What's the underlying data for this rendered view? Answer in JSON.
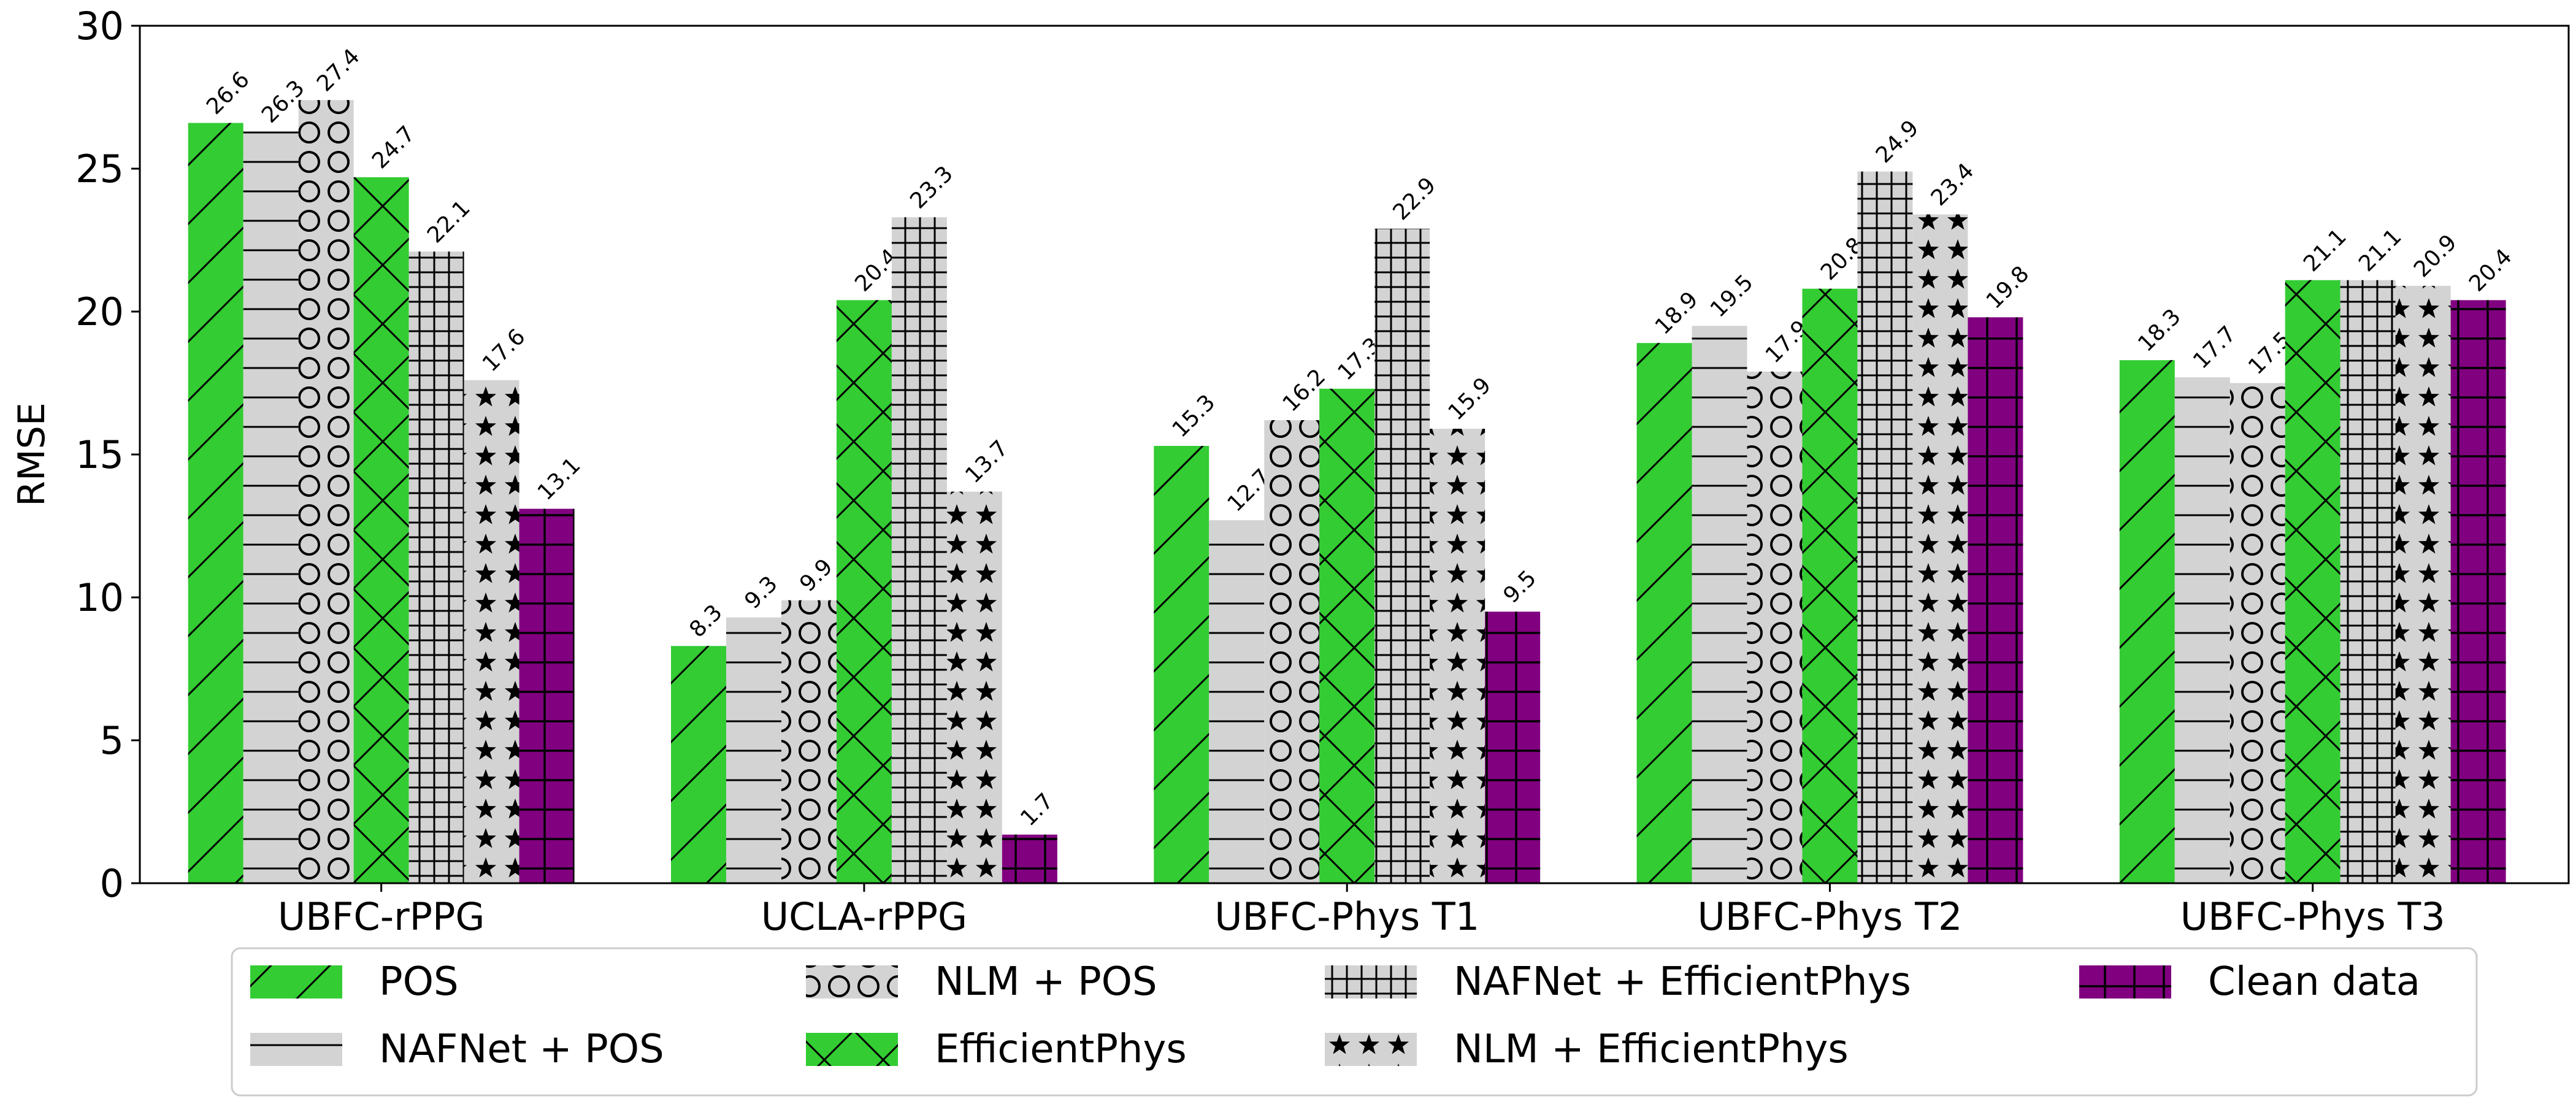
{
  "chart_data": {
    "type": "bar",
    "title": "",
    "xlabel": "",
    "ylabel": "RMSE",
    "ylim": [
      0,
      30
    ],
    "yticks": [
      0,
      5,
      10,
      15,
      20,
      25,
      30
    ],
    "grid": false,
    "legend_position": "bottom",
    "categories": [
      "UBFC-rPPG",
      "UCLA-rPPG",
      "UBFC-Phys T1",
      "UBFC-Phys T2",
      "UBFC-Phys T3"
    ],
    "series": [
      {
        "name": "POS",
        "color": "#33cc33",
        "hatch": "diagonal",
        "values": [
          26.6,
          8.3,
          15.3,
          18.9,
          18.3
        ],
        "labels": [
          "26.6",
          "8.3",
          "15.3",
          "18.9",
          "18.3"
        ]
      },
      {
        "name": "NAFNet + POS",
        "color": "#d3d3d3",
        "hatch": "horizontal",
        "values": [
          26.3,
          9.3,
          12.7,
          19.5,
          17.7
        ],
        "labels": [
          "26.3",
          "9.3",
          "12.7",
          "19.5",
          "17.7"
        ]
      },
      {
        "name": "NLM + POS",
        "color": "#d3d3d3",
        "hatch": "circles",
        "values": [
          27.4,
          9.9,
          16.2,
          17.9,
          17.5
        ],
        "labels": [
          "27.4",
          "9.9",
          "16.2",
          "17.9",
          "17.5"
        ]
      },
      {
        "name": "EfficientPhys",
        "color": "#33cc33",
        "hatch": "crossdiag",
        "values": [
          24.7,
          20.4,
          17.3,
          20.8,
          21.1
        ],
        "labels": [
          "24.7",
          "20.4",
          "17.3",
          "20.8",
          "21.1"
        ]
      },
      {
        "name": "NAFNet + EfficientPhys",
        "color": "#d3d3d3",
        "hatch": "grid",
        "values": [
          22.1,
          23.3,
          22.9,
          24.9,
          21.1
        ],
        "labels": [
          "22.1",
          "23.3",
          "22.9",
          "24.9",
          "21.1"
        ]
      },
      {
        "name": "NLM + EfficientPhys",
        "color": "#d3d3d3",
        "hatch": "stars",
        "values": [
          17.6,
          13.7,
          15.9,
          23.4,
          20.9
        ],
        "labels": [
          "17.6",
          "13.7",
          "15.9",
          "23.4",
          "20.9"
        ]
      },
      {
        "name": "Clean data",
        "color": "#800080",
        "hatch": "bigplus",
        "values": [
          13.1,
          1.7,
          9.5,
          19.8,
          20.4
        ],
        "labels": [
          "13.1",
          "1.7",
          "9.5",
          "19.8",
          "20.4"
        ]
      }
    ],
    "legend_order": [
      0,
      2,
      4,
      6,
      1,
      3,
      5
    ]
  }
}
